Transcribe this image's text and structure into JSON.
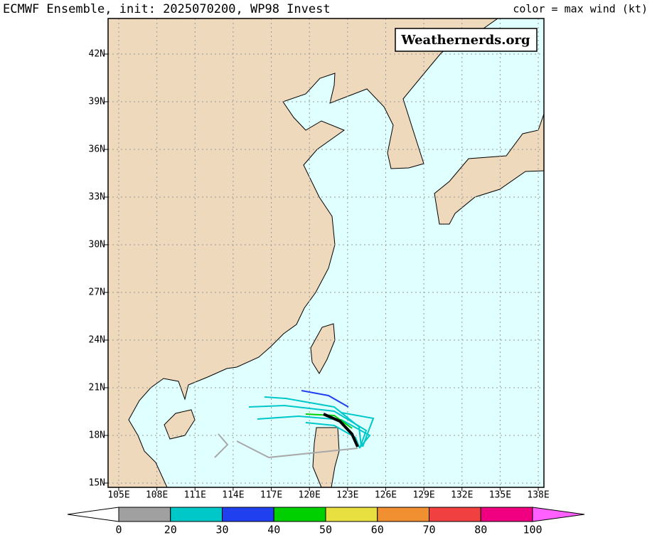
{
  "header": {
    "title": "ECMWF Ensemble, init: 2025070200, WP98 Invest",
    "legend_title": "color = max wind (kt)"
  },
  "watermark": "Weathernerds.org",
  "map": {
    "lon_labels": [
      "105E",
      "108E",
      "111E",
      "114E",
      "117E",
      "120E",
      "123E",
      "126E",
      "129E",
      "132E",
      "135E",
      "138E"
    ],
    "lat_labels": [
      "42N",
      "39N",
      "36N",
      "33N",
      "30N",
      "27N",
      "24N",
      "21N",
      "18N",
      "15N"
    ]
  },
  "colorbar": {
    "labels": [
      "0",
      "20",
      "30",
      "40",
      "50",
      "60",
      "70",
      "80",
      "100"
    ],
    "colors": [
      "#a0a0a0",
      "#00c8c8",
      "#2040f0",
      "#00d000",
      "#e8e040",
      "#f09030",
      "#f04040",
      "#f00080"
    ]
  }
}
